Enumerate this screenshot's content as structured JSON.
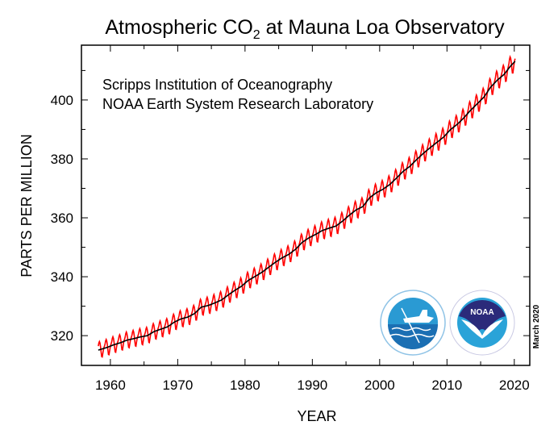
{
  "chart_data": {
    "type": "line",
    "title": "Atmospheric CO",
    "title_subscript": "2",
    "title_suffix": " at Mauna Loa Observatory",
    "annotations": [
      "Scripps Institution of Oceanography",
      "NOAA Earth System Research Laboratory"
    ],
    "date_note": "March 2020",
    "xlabel": "YEAR",
    "ylabel": "PARTS PER MILLION",
    "xlim": [
      1955.7,
      2022.3
    ],
    "ylim": [
      309.9,
      418.6
    ],
    "xticks": [
      1960,
      1970,
      1980,
      1990,
      2000,
      2010,
      2020
    ],
    "yticks": [
      320,
      340,
      360,
      380,
      400
    ],
    "grid": false,
    "colors": {
      "monthly": "#ff0000",
      "trend": "#000000"
    },
    "annual_mean": {
      "years": [
        1958,
        1959,
        1960,
        1961,
        1962,
        1963,
        1964,
        1965,
        1966,
        1967,
        1968,
        1969,
        1970,
        1971,
        1972,
        1973,
        1974,
        1975,
        1976,
        1977,
        1978,
        1979,
        1980,
        1981,
        1982,
        1983,
        1984,
        1985,
        1986,
        1987,
        1988,
        1989,
        1990,
        1991,
        1992,
        1993,
        1994,
        1995,
        1996,
        1997,
        1998,
        1999,
        2000,
        2001,
        2002,
        2003,
        2004,
        2005,
        2006,
        2007,
        2008,
        2009,
        2010,
        2011,
        2012,
        2013,
        2014,
        2015,
        2016,
        2017,
        2018,
        2019,
        2020
      ],
      "ppm": [
        315.3,
        316.0,
        316.9,
        317.6,
        318.5,
        319.0,
        319.6,
        320.0,
        321.4,
        322.2,
        323.0,
        324.6,
        325.7,
        326.3,
        327.5,
        329.7,
        330.2,
        331.1,
        332.1,
        333.8,
        335.4,
        336.8,
        338.8,
        340.1,
        341.5,
        343.2,
        344.9,
        346.4,
        347.6,
        349.3,
        351.7,
        353.2,
        354.4,
        355.7,
        356.5,
        357.2,
        358.9,
        360.9,
        362.7,
        363.8,
        366.8,
        368.5,
        369.7,
        371.3,
        373.5,
        375.8,
        377.5,
        379.8,
        381.9,
        383.8,
        385.6,
        387.4,
        389.9,
        391.7,
        393.9,
        396.5,
        398.7,
        401.0,
        404.4,
        406.8,
        408.7,
        411.7,
        414.0
      ]
    },
    "seasonal_cycle_ppm": [
      0.3,
      0.9,
      1.6,
      2.8,
      3.3,
      2.6,
      1.1,
      -1.1,
      -3.0,
      -3.2,
      -1.9,
      -0.6
    ],
    "series": [
      {
        "key": "monthly",
        "start": "1958-03",
        "end": "2020-02"
      },
      {
        "key": "trend",
        "start": "1958-03",
        "end": "2020-02"
      }
    ],
    "logos": [
      "Scripps Institution of Oceanography UCSD",
      "NOAA"
    ]
  }
}
